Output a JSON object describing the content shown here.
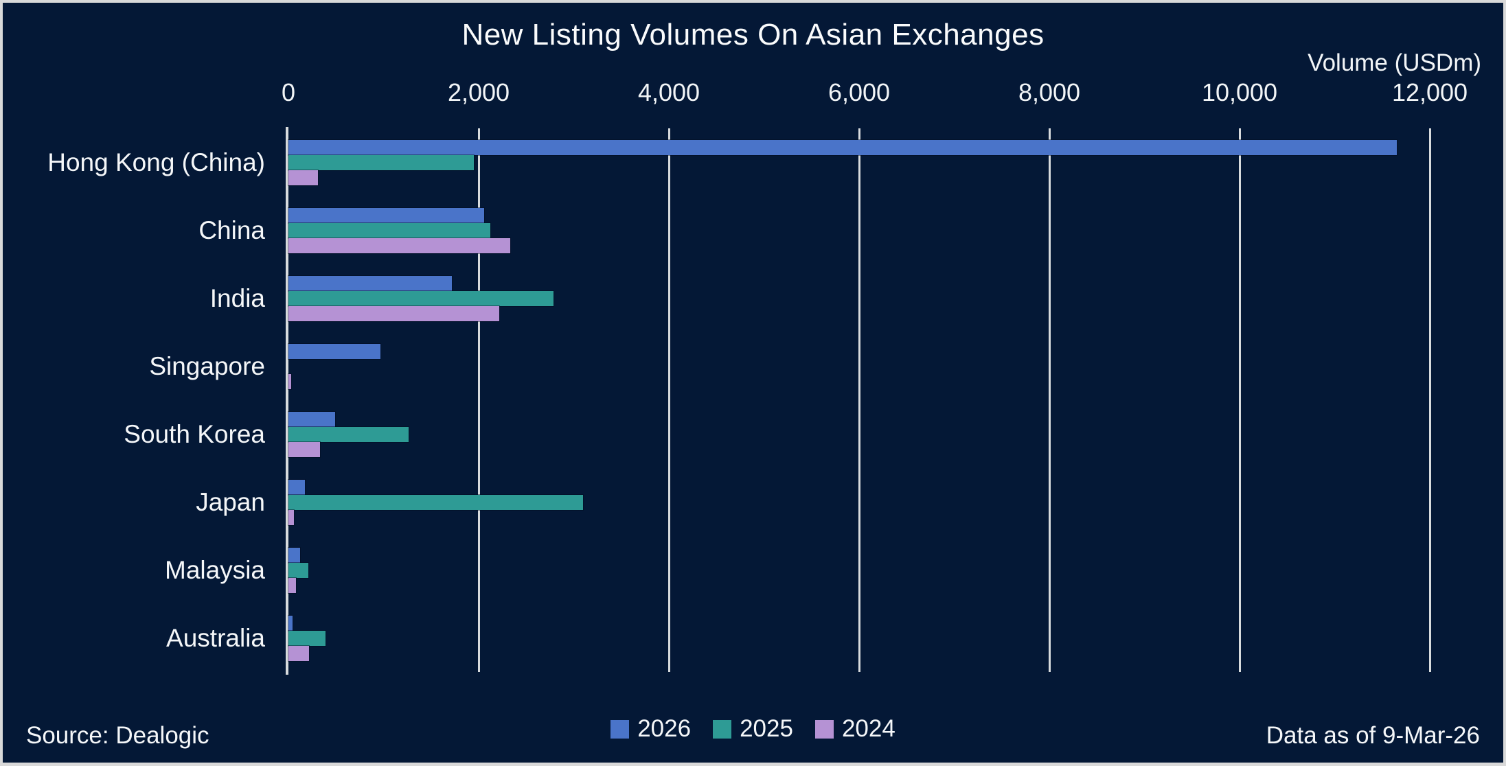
{
  "title": "New Listing Volumes On Asian Exchanges",
  "axis_title": "Volume (USDm)",
  "footer": {
    "source": "Source: Dealogic",
    "as_of": "Data as of 9-Mar-26"
  },
  "colors": {
    "background": "#041836",
    "frame": "#D9D9D9",
    "gridline": "#D8DBDD",
    "text": "#F7F9FA",
    "series_2026": "#4A74C9",
    "series_2025": "#2E9B95",
    "series_2024": "#B592D4"
  },
  "chart_data": {
    "type": "bar",
    "orientation": "horizontal",
    "title": "New Listing Volumes On Asian Exchanges",
    "xlabel": "Volume (USDm)",
    "xlim": [
      0,
      12000
    ],
    "grid": "vertical",
    "legend_position": "bottom-center",
    "x_ticks": [
      {
        "value": 0,
        "label": "0"
      },
      {
        "value": 2000,
        "label": "2,000"
      },
      {
        "value": 4000,
        "label": "4,000"
      },
      {
        "value": 6000,
        "label": "6,000"
      },
      {
        "value": 8000,
        "label": "8,000"
      },
      {
        "value": 10000,
        "label": "10,000"
      },
      {
        "value": 12000,
        "label": "12,000"
      }
    ],
    "categories": [
      "Hong Kong (China)",
      "China",
      "India",
      "Singapore",
      "South Korea",
      "Japan",
      "Malaysia",
      "Australia"
    ],
    "series": [
      {
        "name": "2026",
        "color": "#4A74C9",
        "values": [
          11650,
          2060,
          1720,
          970,
          490,
          170,
          120,
          40
        ]
      },
      {
        "name": "2025",
        "color": "#2E9B95",
        "values": [
          1950,
          2120,
          2790,
          0,
          1260,
          3100,
          210,
          390
        ]
      },
      {
        "name": "2024",
        "color": "#B592D4",
        "values": [
          310,
          2330,
          2220,
          30,
          330,
          60,
          80,
          220
        ]
      }
    ],
    "source": "Dealogic",
    "as_of": "9-Mar-26"
  }
}
